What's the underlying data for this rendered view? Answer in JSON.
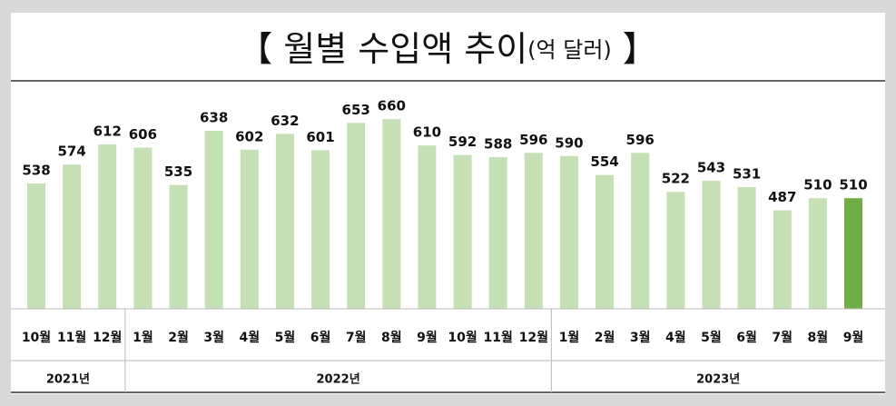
{
  "chart_data": {
    "type": "bar",
    "title": "【 월별 수입액 추이",
    "unit": "(억 달러)",
    "title_end": "】",
    "categories": [
      "10월",
      "11월",
      "12월",
      "1월",
      "2월",
      "3월",
      "4월",
      "5월",
      "6월",
      "7월",
      "8월",
      "9월",
      "10월",
      "11월",
      "12월",
      "1월",
      "2월",
      "3월",
      "4월",
      "5월",
      "6월",
      "7월",
      "8월",
      "9월"
    ],
    "category_years": [
      "2021년",
      "2021년",
      "2021년",
      "2022년",
      "2022년",
      "2022년",
      "2022년",
      "2022년",
      "2022년",
      "2022년",
      "2022년",
      "2022년",
      "2022년",
      "2022년",
      "2022년",
      "2023년",
      "2023년",
      "2023년",
      "2023년",
      "2023년",
      "2023년",
      "2023년",
      "2023년",
      "2023년"
    ],
    "values": [
      538,
      574,
      612,
      606,
      535,
      638,
      602,
      632,
      601,
      653,
      660,
      610,
      592,
      588,
      596,
      590,
      554,
      596,
      522,
      543,
      531,
      487,
      510,
      510
    ],
    "colors": [
      "#c5e0b4",
      "#c5e0b4",
      "#c5e0b4",
      "#c5e0b4",
      "#c5e0b4",
      "#c5e0b4",
      "#c5e0b4",
      "#c5e0b4",
      "#c5e0b4",
      "#c5e0b4",
      "#c5e0b4",
      "#c5e0b4",
      "#c5e0b4",
      "#c5e0b4",
      "#c5e0b4",
      "#c5e0b4",
      "#c5e0b4",
      "#c5e0b4",
      "#c5e0b4",
      "#c5e0b4",
      "#c5e0b4",
      "#c5e0b4",
      "#c5e0b4",
      "#70ad47"
    ],
    "ylim": [
      300,
      700
    ]
  }
}
